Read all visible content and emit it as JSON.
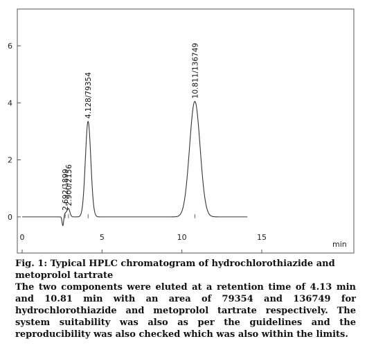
{
  "chart_data": {
    "type": "line",
    "xlabel": "min",
    "xlim": [
      0,
      21.2
    ],
    "ylim": [
      -1.0,
      7.0
    ],
    "x_ticks": [
      0,
      5,
      10,
      15
    ],
    "y_ticks": [
      0,
      2,
      4,
      6
    ],
    "grid": false,
    "line_color": "#333333",
    "peaks": [
      {
        "rt": 2.692,
        "height": 0.12,
        "width": 0.1,
        "label": "2.692/1899"
      },
      {
        "rt": 2.9,
        "height": 0.28,
        "width": 0.09,
        "label": "2.900/2156"
      },
      {
        "rt": 4.128,
        "height": 3.35,
        "width": 0.17,
        "label": "4.128/79354"
      },
      {
        "rt": 10.811,
        "height": 4.05,
        "width": 0.33,
        "label": "10.811/136749"
      }
    ],
    "baseline": 0.0
  },
  "caption": {
    "title": "Fig. 1: Typical HPLC chromatogram of hydrochlorothiazide and metoprolol tartrate",
    "description": "The two components were eluted at a retention time of 4.13 min and 10.81 min with an area of 79354 and 136749 for hydrochlorothiazide and metoprolol tartrate respectively. The system suitability was also as per the guidelines and the reproducibility was also checked which was also within the limits."
  }
}
